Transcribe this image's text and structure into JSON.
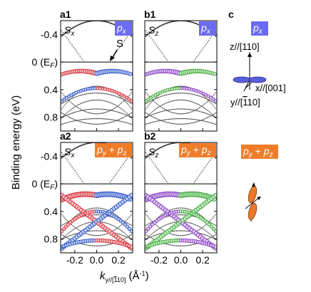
{
  "panels": [
    {
      "id": "a1",
      "label": "a1",
      "spin": "S",
      "spin_sub": "x",
      "orbital_badge": "p",
      "orbital_sub": "x",
      "badge_color": "#6b6bf0",
      "pos_color": "#d9303a",
      "neg_color": "#2f55c9",
      "pos_fill": "#f4c9cc",
      "neg_fill": "#c9d4f4"
    },
    {
      "id": "b1",
      "label": "b1",
      "spin": "S",
      "spin_sub": "z",
      "orbital_badge": "p",
      "orbital_sub": "x",
      "badge_color": "#6b6bf0",
      "pos_color": "#8a3fc4",
      "neg_color": "#3fa83a",
      "pos_fill": "#e2cff2",
      "neg_fill": "#cfeecb"
    },
    {
      "id": "a2",
      "label": "a2",
      "spin": "S",
      "spin_sub": "x",
      "orbital_badge": "p",
      "orbital_sub": "y",
      "orbital_badge2": "p",
      "orbital_sub2": "z",
      "badge_color": "#f07c2a",
      "pos_color": "#d9303a",
      "neg_color": "#2f55c9",
      "pos_fill": "#f4c9cc",
      "neg_fill": "#c9d4f4"
    },
    {
      "id": "b2",
      "label": "b2",
      "spin": "S",
      "spin_sub": "z",
      "orbital_badge": "p",
      "orbital_sub": "y",
      "orbital_badge2": "p",
      "orbital_sub2": "z",
      "badge_color": "#f07c2a",
      "pos_color": "#8a3fc4",
      "neg_color": "#3fa83a",
      "pos_fill": "#e2cff2",
      "neg_fill": "#cfeecb"
    }
  ],
  "panel_c": {
    "label": "c",
    "top_badge": "p",
    "top_badge_sub": "x",
    "bottom_badge": "p",
    "bottom_badge_sub": "y",
    "bottom_badge2": "p",
    "bottom_badge2_sub": "z",
    "axis_z": "z//[110]",
    "axis_x": "x//[001]",
    "axis_y": "y//[",
    "axis_y_bar": "1",
    "axis_y_end": "10]",
    "lobe_color_top": "#5a5fd8",
    "lobe_color_bottom": "#e8792a"
  },
  "annotation": "S",
  "y_axis": {
    "label": "Binding energy (eV)",
    "ticks": [
      "-0.4",
      "0 (E",
      "0.4",
      "0.8"
    ],
    "fermi_sub": "F",
    "fermi_close": ")",
    "values": [
      -0.4,
      0,
      0.4,
      0.8
    ],
    "range": [
      -0.6,
      1.0
    ]
  },
  "x_axis": {
    "label_k": "k",
    "label_sub": "y//[",
    "label_sub_bar": "1",
    "label_sub_end": "10]",
    "label_unit": " (Å",
    "label_unit_sup": "-1",
    "label_unit_end": ")",
    "ticks": [
      "-0.2",
      "0.0",
      "0.2"
    ],
    "values": [
      -0.2,
      0.0,
      0.2
    ],
    "range": [
      -0.33,
      0.33
    ]
  },
  "chart_data": {
    "type": "scatter",
    "panels": [
      "a1",
      "b1",
      "a2",
      "b2"
    ],
    "xlim": [
      -0.33,
      0.33
    ],
    "ylim": [
      -0.6,
      1.0
    ],
    "xlabel": "k_y//[-110] (Å^-1)",
    "ylabel": "Binding energy (eV)"
  }
}
